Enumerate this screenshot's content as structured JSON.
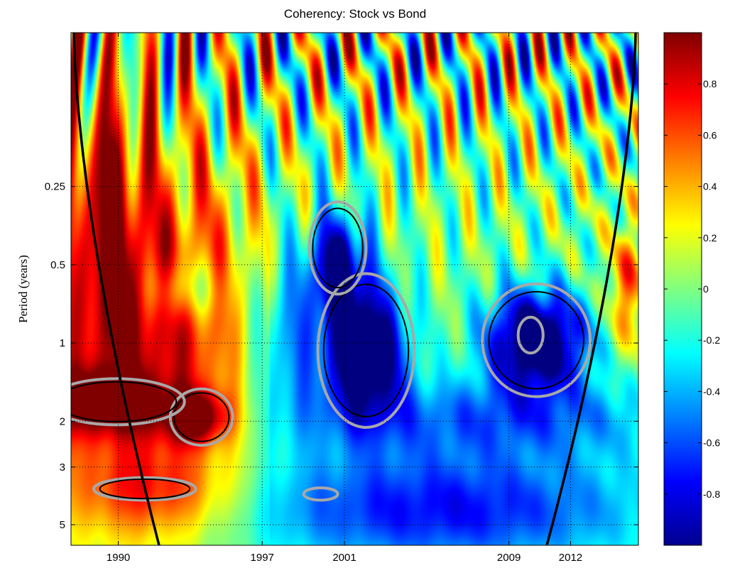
{
  "chart_data": {
    "type": "heatmap",
    "title": "Coherency: Stock vs Bond",
    "ylabel": "Period (years)",
    "xlabel": "",
    "x_ticks": [
      {
        "value": 1990,
        "label": "1990"
      },
      {
        "value": 1997,
        "label": "1997"
      },
      {
        "value": 2001,
        "label": "2001"
      },
      {
        "value": 2009,
        "label": "2009"
      },
      {
        "value": 2012,
        "label": "2012"
      }
    ],
    "xlim": [
      1987.7,
      2015.3
    ],
    "y_ticks": [
      {
        "value": 0.25,
        "label": "0.25"
      },
      {
        "value": 0.5,
        "label": "0.5"
      },
      {
        "value": 1,
        "label": "1"
      },
      {
        "value": 2,
        "label": "2"
      },
      {
        "value": 3,
        "label": "3"
      },
      {
        "value": 5,
        "label": "5"
      }
    ],
    "ylim": [
      0.064,
      6.0
    ],
    "y_scale": "log2",
    "y_reversed": true,
    "grid": "dotted",
    "colormap": "jet",
    "clim": [
      -1,
      1
    ],
    "colorbar_ticks": [
      {
        "value": 0.8,
        "label": "0.8"
      },
      {
        "value": 0.6,
        "label": "0.6"
      },
      {
        "value": 0.4,
        "label": "0.4"
      },
      {
        "value": 0.2,
        "label": "0.2"
      },
      {
        "value": 0,
        "label": "0"
      },
      {
        "value": -0.2,
        "label": "-0.2"
      },
      {
        "value": -0.4,
        "label": "-0.4"
      },
      {
        "value": -0.6,
        "label": "-0.6"
      },
      {
        "value": -0.8,
        "label": "-0.8"
      }
    ],
    "features": [
      {
        "name": "positive-band-2y",
        "x": [
          1987.7,
          1995.0
        ],
        "y": [
          1.5,
          2.5
        ],
        "value": 0.9
      },
      {
        "name": "positive-island-4y",
        "x": [
          1988.3,
          1994.0
        ],
        "y": [
          3.5,
          4.5
        ],
        "value": 0.7
      },
      {
        "name": "negative-region-2001",
        "x": [
          1998.5,
          2004.5
        ],
        "y": [
          0.45,
          2.2
        ],
        "value": -0.95
      },
      {
        "name": "negative-region-2010",
        "x": [
          2007.5,
          2013.5
        ],
        "y": [
          0.75,
          2.0
        ],
        "value": -0.95
      },
      {
        "name": "negative-long-period",
        "x": [
          1997.0,
          2015.3
        ],
        "y": [
          2.5,
          6.0
        ],
        "value": -0.6
      },
      {
        "name": "positive-early-long",
        "x": [
          1987.7,
          1996.0
        ],
        "y": [
          1.0,
          6.0
        ],
        "value": 0.6
      }
    ]
  }
}
